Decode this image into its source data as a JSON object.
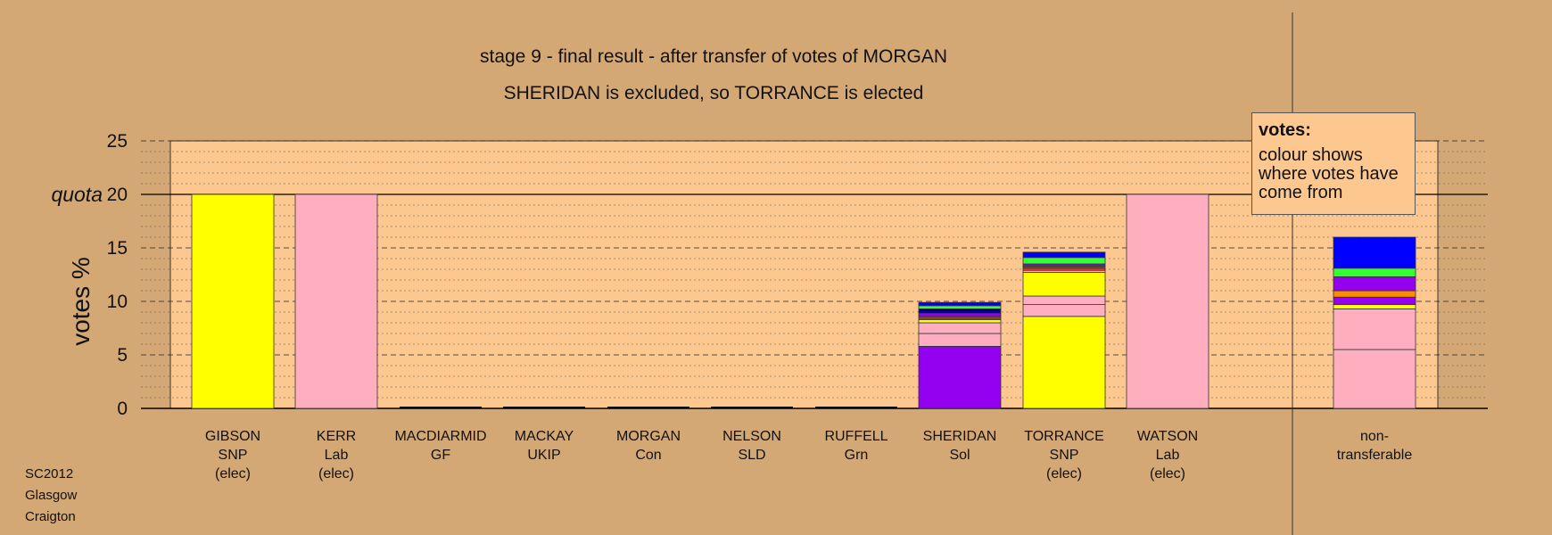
{
  "title_line1": "stage 9 - final result - after transfer of votes of MORGAN",
  "title_line2": "SHERIDAN is excluded, so TORRANCE is elected",
  "legend": {
    "title": "votes:",
    "body": "colour shows where votes have come from"
  },
  "footer": [
    "SC2012",
    "Glasgow",
    "Craigton"
  ],
  "chart_data": {
    "type": "bar",
    "stacked": true,
    "ylabel": "votes %",
    "ylim": [
      0,
      25
    ],
    "yticks": [
      0,
      5,
      10,
      15,
      20,
      25
    ],
    "quota_label": "quota",
    "quota": 20,
    "categories": [
      {
        "lines": [
          "GIBSON",
          "SNP",
          "(elec)"
        ]
      },
      {
        "lines": [
          "KERR",
          "Lab",
          "(elec)"
        ]
      },
      {
        "lines": [
          "MACDIARMID",
          "GF"
        ]
      },
      {
        "lines": [
          "MACKAY",
          "UKIP"
        ]
      },
      {
        "lines": [
          "MORGAN",
          "Con"
        ]
      },
      {
        "lines": [
          "NELSON",
          "SLD"
        ]
      },
      {
        "lines": [
          "RUFFELL",
          "Grn"
        ]
      },
      {
        "lines": [
          "SHERIDAN",
          "Sol"
        ]
      },
      {
        "lines": [
          "TORRANCE",
          "SNP",
          "(elec)"
        ]
      },
      {
        "lines": [
          "WATSON",
          "Lab",
          "(elec)"
        ]
      },
      {
        "lines": [
          "non-",
          "transferable"
        ]
      }
    ],
    "stacks": [
      [
        {
          "value": 20,
          "color": "#ffff00"
        }
      ],
      [
        {
          "value": 20,
          "color": "#ffaec0"
        }
      ],
      [],
      [],
      [],
      [],
      [],
      [
        {
          "value": 5.8,
          "color": "#9400f0"
        },
        {
          "value": 1.2,
          "color": "#ffaec0"
        },
        {
          "value": 1.0,
          "color": "#ffaec0"
        },
        {
          "value": 0.3,
          "color": "#ffff00"
        },
        {
          "value": 0.3,
          "color": "#8b4513"
        },
        {
          "value": 0.3,
          "color": "#9400f0"
        },
        {
          "value": 0.4,
          "color": "#00008b"
        },
        {
          "value": 0.3,
          "color": "#33ff33"
        },
        {
          "value": 0.3,
          "color": "#0000ff"
        }
      ],
      [
        {
          "value": 8.6,
          "color": "#ffff00"
        },
        {
          "value": 1.1,
          "color": "#ffaec0"
        },
        {
          "value": 0.8,
          "color": "#ffaec0"
        },
        {
          "value": 2.2,
          "color": "#ffff00"
        },
        {
          "value": 0.2,
          "color": "#ffaec0"
        },
        {
          "value": 0.2,
          "color": "#ff3333"
        },
        {
          "value": 0.2,
          "color": "#8b4513"
        },
        {
          "value": 0.2,
          "color": "#9400f0"
        },
        {
          "value": 0.6,
          "color": "#33ff33"
        },
        {
          "value": 0.5,
          "color": "#0000ff"
        }
      ],
      [
        {
          "value": 20,
          "color": "#ffaec0"
        }
      ],
      [
        {
          "value": 5.5,
          "color": "#ffaec0"
        },
        {
          "value": 3.8,
          "color": "#ffaec0"
        },
        {
          "value": 0.4,
          "color": "#ffff00"
        },
        {
          "value": 0.7,
          "color": "#9400f0"
        },
        {
          "value": 0.6,
          "color": "#ff8c00"
        },
        {
          "value": 1.3,
          "color": "#9400f0"
        },
        {
          "value": 0.8,
          "color": "#33ff33"
        },
        {
          "value": 2.9,
          "color": "#0000ff"
        }
      ]
    ]
  },
  "colors": {
    "background": "#d4a874",
    "plot_area": "#fdc890"
  }
}
